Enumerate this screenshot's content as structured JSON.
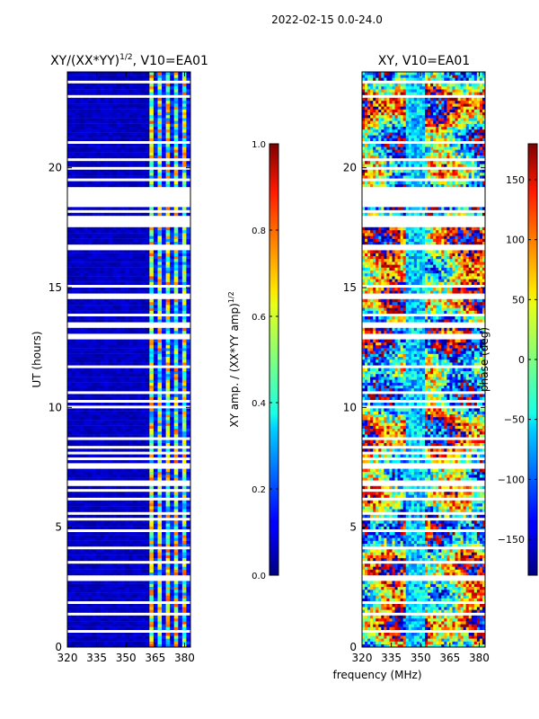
{
  "suptitle": "2022-02-15 0.0-24.0",
  "colors": {
    "background": "#ffffff",
    "gap": "#ffffff",
    "baseline_amp": "#000e9c",
    "axis": "#000000"
  },
  "chart_data": [
    {
      "type": "heatmap",
      "title_main": "XY/(XX*YY)",
      "title_exp": "1/2",
      "title_suffix": ", V10=EA01",
      "xlabel": "",
      "ylabel": "UT (hours)",
      "xlim": [
        320,
        383
      ],
      "ylim": [
        0,
        24
      ],
      "xticks": [
        320,
        335,
        350,
        365,
        380
      ],
      "yticks": [
        0,
        5,
        10,
        15,
        20
      ],
      "colorbar": {
        "label_main": "XY amp. / (XX*YY amp)",
        "label_exp": "1/2",
        "range": [
          0,
          1
        ],
        "ticks": [
          "0.0",
          "0.2",
          "0.4",
          "0.6",
          "0.8",
          "1.0"
        ],
        "tick_values": [
          0,
          0.2,
          0.4,
          0.6,
          0.8,
          1.0
        ]
      },
      "data_gaps_hours": [
        [
          18.35,
          19.15
        ],
        [
          10.45,
          10.6
        ],
        [
          5.2,
          5.35
        ],
        [
          3.4,
          3.5
        ]
      ],
      "bright_channels_mhz": [
        [
          362,
          364
        ],
        [
          366,
          369
        ],
        [
          371,
          373
        ],
        [
          375,
          377
        ],
        [
          378,
          380
        ]
      ],
      "value_range_background": [
        0.0,
        0.1
      ],
      "value_range_bright": [
        0.35,
        0.75
      ]
    },
    {
      "type": "heatmap",
      "title_main": "XY, V10=EA01",
      "xlabel": "frequency (MHz)",
      "ylabel": "",
      "xlim": [
        320,
        383
      ],
      "ylim": [
        0,
        24
      ],
      "xticks": [
        320,
        335,
        350,
        365,
        380
      ],
      "yticks": [
        0,
        5,
        10,
        15,
        20
      ],
      "colorbar": {
        "label_main": "phase (deg)",
        "range": [
          -180,
          180
        ],
        "ticks": [
          "−150",
          "−100",
          "−50",
          "0",
          "50",
          "100",
          "150"
        ],
        "tick_values": [
          -150,
          -100,
          -50,
          0,
          50,
          100,
          150
        ]
      },
      "data_gaps_hours": [
        [
          18.35,
          19.15
        ],
        [
          10.45,
          10.6
        ],
        [
          5.2,
          5.35
        ],
        [
          3.4,
          3.5
        ]
      ],
      "value_range": [
        -180,
        180
      ]
    }
  ]
}
